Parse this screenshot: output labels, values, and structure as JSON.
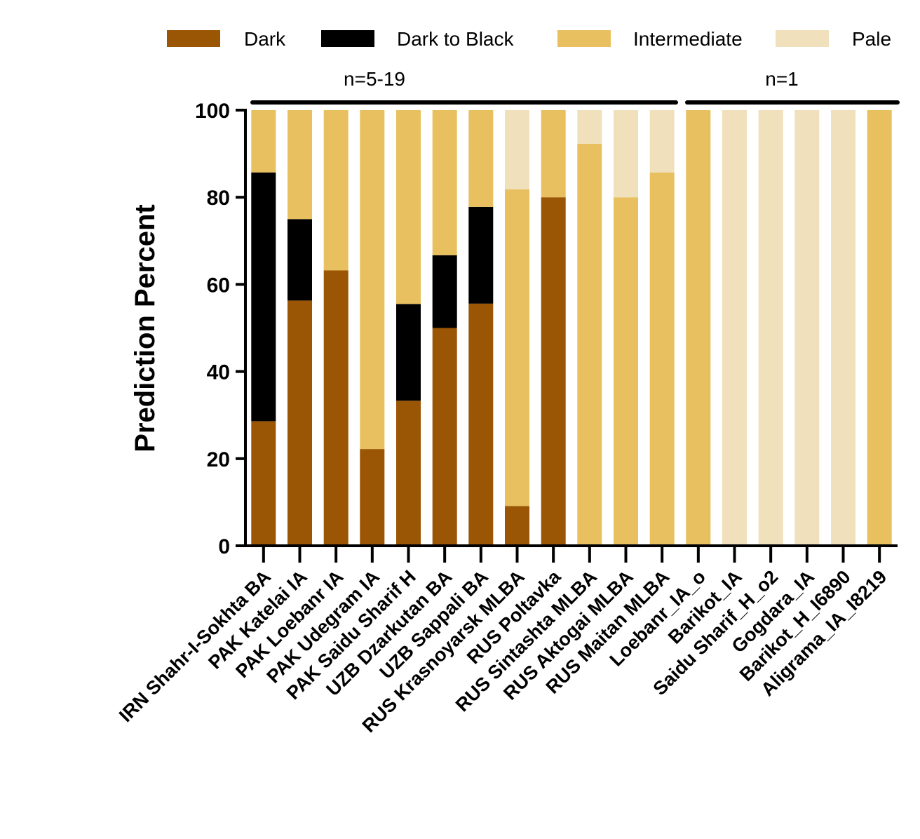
{
  "chart_data": {
    "type": "bar",
    "stacked": true,
    "ylabel": "Prediction Percent",
    "xlabel": "",
    "ylim": [
      0,
      100
    ],
    "yticks": [
      0,
      20,
      40,
      60,
      80,
      100
    ],
    "legend_position": "top",
    "categories": [
      "IRN Shahr-I-Sokhta BA",
      "PAK Katelai IA",
      "PAK Loebanr IA",
      "PAK Udegram IA",
      "PAK Saidu Sharif H",
      "UZB Dzarkutan BA",
      "UZB Sappali BA",
      "RUS Krasnoyarsk MLBA",
      "RUS Poltavka",
      "RUS Sintashta MLBA",
      "RUS Aktogai MLBA",
      "RUS Maitan MLBA",
      "Loebanr_IA_o",
      "Barikot_IA",
      "Saidu Sharif_H_o2",
      "Gogdara_IA",
      "Barikot_H_I6890",
      "Aligrama_IA_I8219"
    ],
    "series": [
      {
        "name": "Dark",
        "color": "#9A5505",
        "values": [
          28.6,
          56.3,
          63.2,
          22.2,
          33.3,
          50,
          55.6,
          9.1,
          80,
          0,
          0,
          0,
          0,
          0,
          0,
          0,
          0,
          0
        ]
      },
      {
        "name": "Dark to Black",
        "color": "#000000",
        "values": [
          57.1,
          18.7,
          0,
          0,
          22.2,
          16.7,
          22.2,
          0,
          0,
          0,
          0,
          0,
          0,
          0,
          0,
          0,
          0,
          0
        ]
      },
      {
        "name": "Intermediate",
        "color": "#E8C060",
        "values": [
          14.3,
          25,
          36.8,
          77.8,
          44.5,
          33.3,
          22.2,
          72.7,
          20,
          92.3,
          80,
          85.7,
          100,
          0,
          0,
          0,
          0,
          100
        ]
      },
      {
        "name": "Pale",
        "color": "#F0E0BC",
        "values": [
          0,
          0,
          0,
          0,
          0,
          0,
          0,
          18.2,
          0,
          7.7,
          20,
          14.3,
          0,
          100,
          100,
          100,
          100,
          0
        ]
      }
    ],
    "groups": [
      {
        "label": "n=5-19",
        "start": 0,
        "end": 11
      },
      {
        "label": "n=1",
        "start": 12,
        "end": 17
      }
    ]
  }
}
